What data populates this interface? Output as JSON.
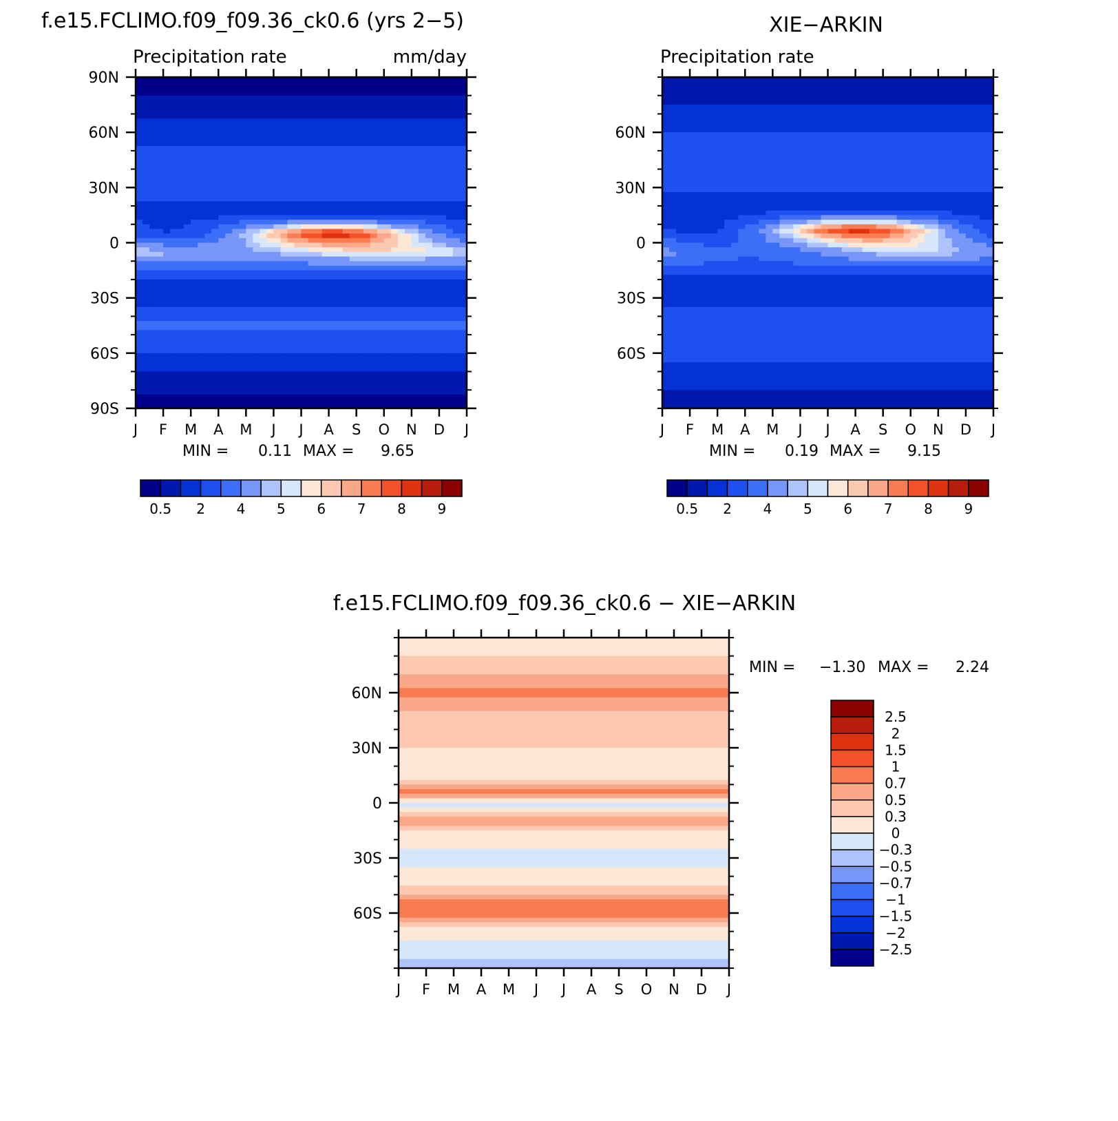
{
  "palettes": {
    "precip": [
      "#00008b",
      "#0018ad",
      "#0532d6",
      "#1e50f0",
      "#3c6ef7",
      "#7896f7",
      "#aec3fa",
      "#d7e7fa",
      "#fde8d8",
      "#fcc8b0",
      "#fba888",
      "#f97c50",
      "#f5522a",
      "#e0320f",
      "#b81c0a",
      "#8b0000"
    ],
    "diff": [
      "#00008b",
      "#0018ad",
      "#0532d6",
      "#1e50f0",
      "#3c6ef7",
      "#7896f7",
      "#aec3fa",
      "#d7e7fa",
      "#fde8d8",
      "#fcc8b0",
      "#fba888",
      "#f97c50",
      "#f5522a",
      "#e0320f",
      "#b81c0a",
      "#8b0000"
    ]
  },
  "months": [
    "J",
    "F",
    "M",
    "A",
    "M",
    "J",
    "J",
    "A",
    "S",
    "O",
    "N",
    "D",
    "J"
  ],
  "panels": {
    "model": {
      "title": "f.e15.FCLIMO.f09_f09.36_ck0.6 (yrs 2−5)",
      "left_label": "Precipitation  rate",
      "right_label": "mm/day",
      "lat_ticks": [
        "90N",
        "60N",
        "30N",
        "0",
        "30S",
        "60S",
        "90S"
      ],
      "stats": {
        "min_label": "MIN =",
        "min": "0.11",
        "max_label": "MAX =",
        "max": "9.65"
      },
      "colorbar_labels": [
        "0.5",
        "2",
        "4",
        "5",
        "6",
        "7",
        "8",
        "9"
      ]
    },
    "obs": {
      "title": "XIE−ARKIN",
      "left_label": "Precipitation  rate",
      "lat_ticks": [
        "60N",
        "30N",
        "0",
        "30S",
        "60S"
      ],
      "stats": {
        "min_label": "MIN =",
        "min": "0.19",
        "max_label": "MAX =",
        "max": "9.15"
      },
      "colorbar_labels": [
        "0.5",
        "2",
        "4",
        "5",
        "6",
        "7",
        "8",
        "9"
      ]
    },
    "diff": {
      "title": "f.e15.FCLIMO.f09_f09.36_ck0.6  −  XIE−ARKIN",
      "lat_ticks": [
        "60N",
        "30N",
        "0",
        "30S",
        "60S"
      ],
      "stats": {
        "min_label": "MIN =",
        "min": "−1.30",
        "max_label": "MAX =",
        "max": "2.24"
      },
      "colorbar_labels": [
        "2.5",
        "2",
        "1.5",
        "1",
        "0.7",
        "0.5",
        "0.3",
        "0",
        "−0.3",
        "−0.5",
        "−0.7",
        "−1",
        "−1.5",
        "−2",
        "−2.5"
      ]
    }
  },
  "chart_data": [
    {
      "type": "heatmap",
      "title": "f.e15.FCLIMO.f09_f09.36_ck0.6 (yrs 2−5)",
      "subtitle_left": "Precipitation  rate",
      "units": "mm/day",
      "x": [
        "J",
        "F",
        "M",
        "A",
        "M",
        "J",
        "J",
        "A",
        "S",
        "O",
        "N",
        "D",
        "J"
      ],
      "y_ticks": [
        "90N",
        "60N",
        "30N",
        "0",
        "30S",
        "60S",
        "90S"
      ],
      "ylim": [
        -90,
        90
      ],
      "levels": [
        0.5,
        1,
        2,
        3,
        4,
        5,
        5.5,
        6,
        6.5,
        7,
        7.5,
        8,
        8.5,
        9,
        9.5
      ],
      "colorbar_labels": [
        "0.5",
        "2",
        "4",
        "5",
        "6",
        "7",
        "8",
        "9"
      ],
      "min": 0.11,
      "max": 9.65,
      "bands": [
        {
          "lat": 90,
          "value": 0.3
        },
        {
          "lat": 75,
          "value": 0.6
        },
        {
          "lat": 60,
          "value": 1.5
        },
        {
          "lat": 45,
          "value": 2.6
        },
        {
          "lat": 30,
          "value": 2.2
        },
        {
          "lat": 15,
          "value": 1.8
        },
        {
          "lat": 5,
          "value": 5.5,
          "seasonal": 3.5,
          "peak_month": 7
        },
        {
          "lat": -5,
          "value": 5.6,
          "seasonal": -0.8,
          "peak_month": 3
        },
        {
          "lat": -15,
          "value": 3.0
        },
        {
          "lat": -22,
          "value": 1.2
        },
        {
          "lat": -30,
          "value": 1.5
        },
        {
          "lat": -45,
          "value": 3.3
        },
        {
          "lat": -60,
          "value": 2.0
        },
        {
          "lat": -72,
          "value": 0.9
        },
        {
          "lat": -90,
          "value": 0.2
        }
      ]
    },
    {
      "type": "heatmap",
      "title": "XIE−ARKIN",
      "subtitle_left": "Precipitation  rate",
      "x": [
        "J",
        "F",
        "M",
        "A",
        "M",
        "J",
        "J",
        "A",
        "S",
        "O",
        "N",
        "D",
        "J"
      ],
      "y_ticks": [
        "60N",
        "30N",
        "0",
        "30S",
        "60S"
      ],
      "ylim": [
        -90,
        90
      ],
      "levels": [
        0.5,
        1,
        2,
        3,
        4,
        5,
        5.5,
        6,
        6.5,
        7,
        7.5,
        8,
        8.5,
        9,
        9.5
      ],
      "colorbar_labels": [
        "0.5",
        "2",
        "4",
        "5",
        "6",
        "7",
        "8",
        "9"
      ],
      "min": 0.19,
      "max": 9.15,
      "bands": [
        {
          "lat": 90,
          "value": 0.5
        },
        {
          "lat": 75,
          "value": 1.0
        },
        {
          "lat": 60,
          "value": 2.0
        },
        {
          "lat": 45,
          "value": 2.6
        },
        {
          "lat": 30,
          "value": 2.1
        },
        {
          "lat": 18,
          "value": 1.5
        },
        {
          "lat": 7,
          "value": 5.2,
          "seasonal": 3.6,
          "peak_month": 7
        },
        {
          "lat": -5,
          "value": 4.4,
          "seasonal": -1.2,
          "peak_month": 3
        },
        {
          "lat": -15,
          "value": 2.6
        },
        {
          "lat": -22,
          "value": 1.3
        },
        {
          "lat": -35,
          "value": 2.0
        },
        {
          "lat": -45,
          "value": 3.0
        },
        {
          "lat": -60,
          "value": 2.4
        },
        {
          "lat": -75,
          "value": 1.2
        },
        {
          "lat": -90,
          "value": 0.6
        }
      ]
    },
    {
      "type": "heatmap",
      "title": "f.e15.FCLIMO.f09_f09.36_ck0.6  −  XIE−ARKIN",
      "x": [
        "J",
        "F",
        "M",
        "A",
        "M",
        "J",
        "J",
        "A",
        "S",
        "O",
        "N",
        "D",
        "J"
      ],
      "y_ticks": [
        "60N",
        "30N",
        "0",
        "30S",
        "60S"
      ],
      "ylim": [
        -90,
        90
      ],
      "levels": [
        -2.5,
        -2,
        -1.5,
        -1,
        -0.7,
        -0.5,
        -0.3,
        0,
        0.3,
        0.5,
        0.7,
        1,
        1.5,
        2,
        2.5
      ],
      "colorbar_labels": [
        "2.5",
        "2",
        "1.5",
        "1",
        "0.7",
        "0.5",
        "0.3",
        "0",
        "−0.3",
        "−0.5",
        "−0.7",
        "−1",
        "−1.5",
        "−2",
        "−2.5"
      ],
      "min": -1.3,
      "max": 2.24,
      "bands": [
        {
          "lat": 90,
          "value": 0.1
        },
        {
          "lat": 75,
          "value": 0.4
        },
        {
          "lat": 60,
          "value": 0.75
        },
        {
          "lat": 45,
          "value": 0.35
        },
        {
          "lat": 30,
          "value": 0.3
        },
        {
          "lat": 15,
          "value": 0.2
        },
        {
          "lat": 5,
          "value": 0.9
        },
        {
          "lat": 0,
          "value": -0.3
        },
        {
          "lat": -8,
          "value": 0.7
        },
        {
          "lat": -15,
          "value": 0.3
        },
        {
          "lat": -30,
          "value": -0.1
        },
        {
          "lat": -45,
          "value": 0.25
        },
        {
          "lat": -57,
          "value": 1.0
        },
        {
          "lat": -68,
          "value": 0.3
        },
        {
          "lat": -80,
          "value": -0.2
        },
        {
          "lat": -90,
          "value": -0.4
        }
      ]
    }
  ]
}
